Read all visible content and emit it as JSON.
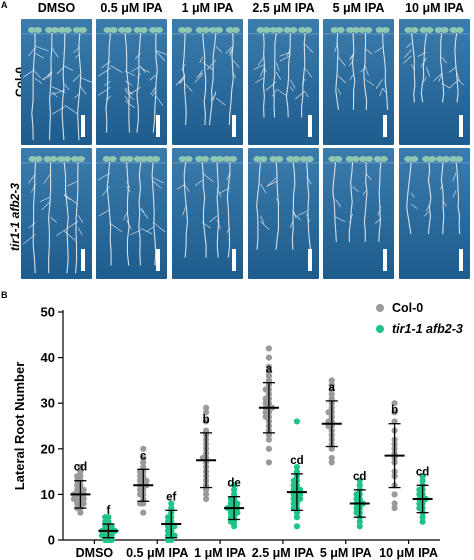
{
  "panel_a": {
    "letter": "A",
    "columns": [
      "DMSO",
      "0.5 μM IPA",
      "1 μM IPA",
      "2.5 μM IPA",
      "5 μM IPA",
      "10 μM IPA"
    ],
    "rows": [
      "Col-0",
      "tir1-1 afb2-3"
    ],
    "colors": {
      "plate": "#1d5c8c",
      "plate_light": "#3c7cad",
      "root": "#e9eef2",
      "leaf": "#8fc8b0"
    }
  },
  "panel_b": {
    "letter": "B",
    "legend": [
      "Col-0",
      "tir1-1 afb2-3"
    ]
  },
  "chart_data": {
    "type": "scatter",
    "ylabel": "Lateral Root Number",
    "xlabel": "",
    "ylim": [
      0,
      50
    ],
    "yticks": [
      0,
      10,
      20,
      30,
      40,
      50
    ],
    "categories": [
      "DMSO",
      "0.5 μM IPA",
      "1 μM IPA",
      "2.5 μM IPA",
      "5 μM IPA",
      "10 μM IPA"
    ],
    "series": [
      {
        "name": "Col-0",
        "color": "#9a9a9a",
        "mean": [
          10,
          12,
          17.5,
          29,
          25.5,
          18.5
        ],
        "sd": [
          3,
          3.5,
          6,
          5.5,
          5,
          7
        ],
        "letters": [
          "cd",
          "c",
          "b",
          "a",
          "a",
          "b"
        ],
        "points": [
          [
            6,
            7,
            7,
            8,
            8,
            8,
            9,
            9,
            9,
            9,
            10,
            10,
            10,
            10,
            11,
            11,
            11,
            12,
            12,
            13,
            13,
            14,
            14,
            15,
            16
          ],
          [
            6,
            8,
            8,
            9,
            10,
            10,
            11,
            11,
            12,
            12,
            12,
            13,
            13,
            13,
            14,
            14,
            15,
            15,
            16,
            17,
            18,
            20
          ],
          [
            9,
            10,
            11,
            12,
            13,
            14,
            15,
            16,
            17,
            18,
            18,
            19,
            20,
            21,
            22,
            23,
            24,
            26,
            28,
            29
          ],
          [
            17,
            20,
            22,
            23,
            24,
            25,
            26,
            27,
            27,
            28,
            28,
            29,
            29,
            29,
            30,
            30,
            31,
            31,
            32,
            33,
            33,
            34,
            35,
            36,
            37,
            38,
            40,
            42
          ],
          [
            17,
            18,
            20,
            21,
            22,
            23,
            24,
            25,
            25,
            26,
            26,
            27,
            28,
            28,
            29,
            30,
            31,
            32,
            33,
            34,
            35
          ],
          [
            7,
            8,
            10,
            12,
            14,
            15,
            17,
            18,
            19,
            20,
            21,
            22,
            24,
            26,
            28,
            30
          ]
        ]
      },
      {
        "name": "tir1-1 afb2-3",
        "color": "#1fc486",
        "mean": [
          2,
          3.5,
          7,
          10.5,
          8,
          9
        ],
        "sd": [
          1.5,
          3,
          2.5,
          4,
          3,
          3
        ],
        "letters": [
          "f",
          "ef",
          "de",
          "cd",
          "cd",
          "cd"
        ],
        "points": [
          [
            0,
            0,
            0,
            1,
            1,
            1,
            1,
            2,
            2,
            2,
            2,
            2,
            3,
            3,
            3,
            4,
            4,
            5,
            5
          ],
          [
            0,
            0,
            1,
            1,
            1,
            2,
            2,
            3,
            3,
            3,
            4,
            4,
            5,
            5,
            6,
            7,
            8
          ],
          [
            3,
            4,
            4,
            5,
            5,
            6,
            6,
            6,
            7,
            7,
            7,
            7,
            8,
            8,
            8,
            9,
            9,
            10,
            11,
            12
          ],
          [
            3,
            5,
            6,
            7,
            7,
            8,
            8,
            9,
            9,
            9,
            10,
            10,
            10,
            11,
            11,
            11,
            12,
            12,
            13,
            13,
            14,
            15,
            16,
            26
          ],
          [
            3,
            4,
            5,
            6,
            6,
            7,
            7,
            8,
            8,
            8,
            9,
            9,
            10,
            10,
            11,
            12,
            13
          ],
          [
            4,
            5,
            6,
            7,
            7,
            8,
            8,
            9,
            9,
            9,
            10,
            10,
            11,
            11,
            12,
            13,
            14
          ]
        ]
      }
    ]
  }
}
